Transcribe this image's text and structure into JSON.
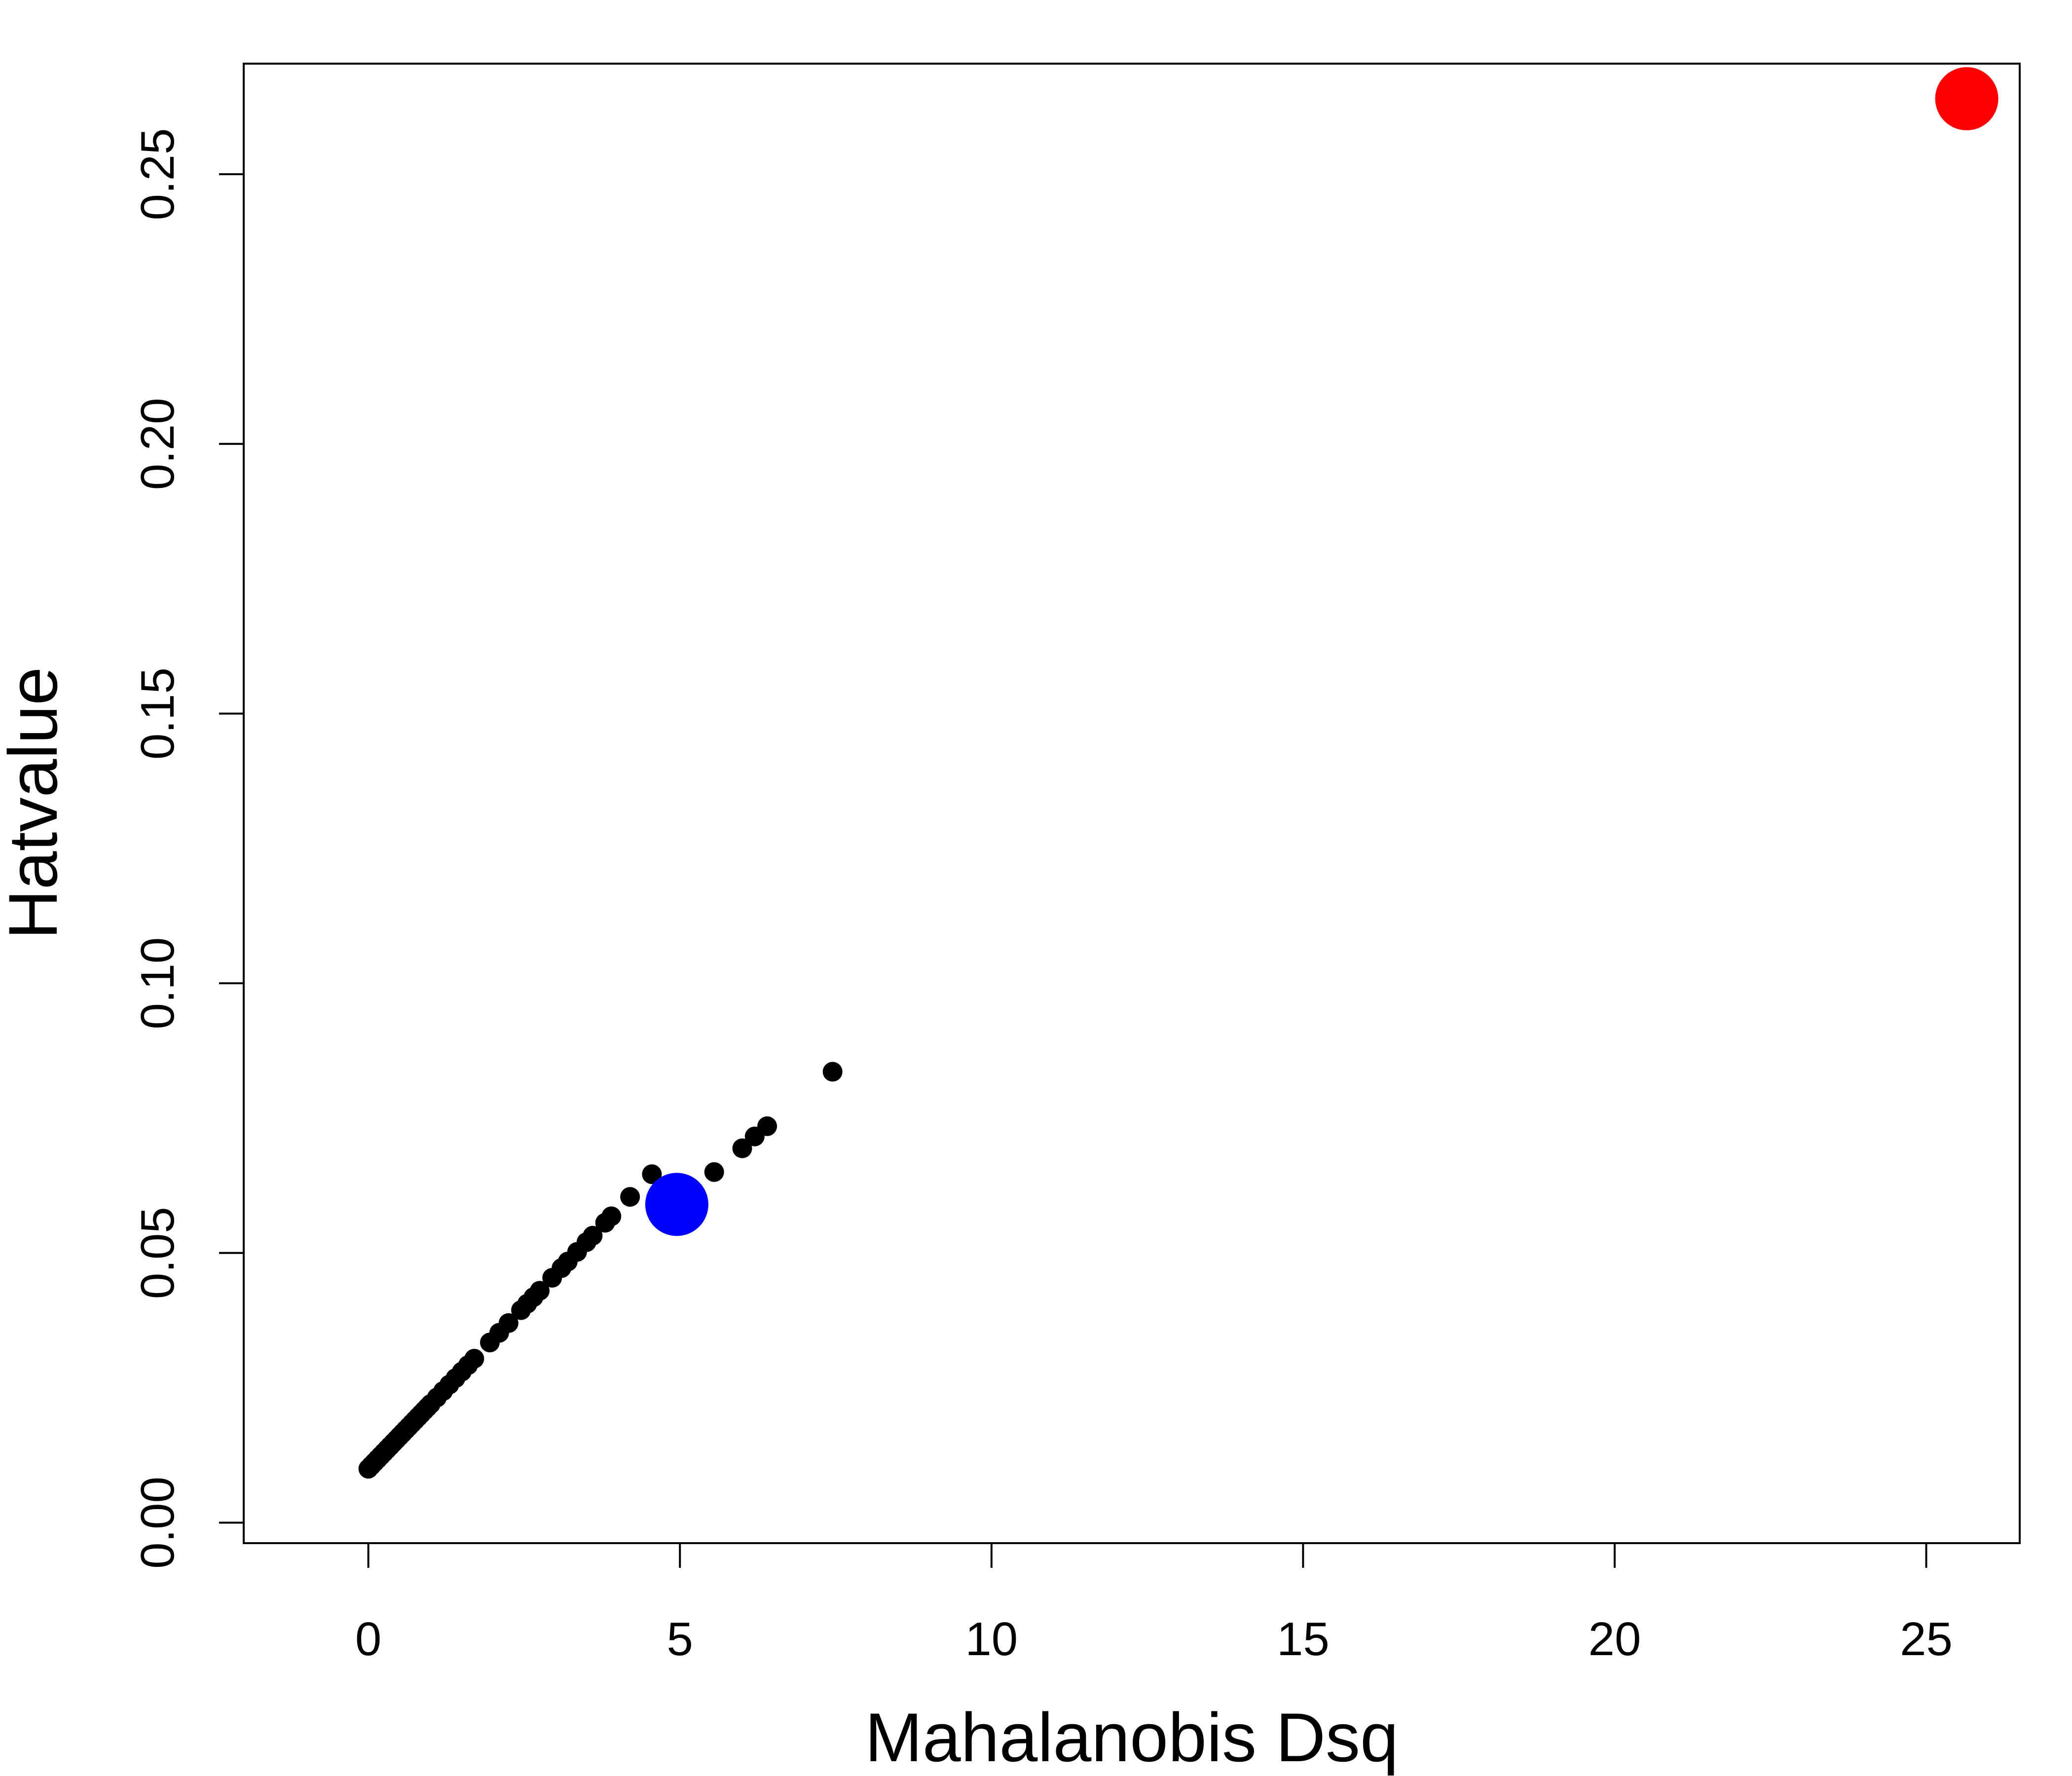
{
  "chart_data": {
    "type": "scatter",
    "title": "",
    "xlabel": "Mahalanobis Dsq",
    "ylabel": "Hatvalue",
    "xlim": [
      -2,
      26.5
    ],
    "ylim": [
      -0.0038,
      0.2705
    ],
    "xticks": [
      0,
      5,
      10,
      15,
      20,
      25
    ],
    "yticks": [
      0.0,
      0.05,
      0.1,
      0.15,
      0.2,
      0.25
    ],
    "xtick_labels": [
      "0",
      "5",
      "10",
      "15",
      "20",
      "25"
    ],
    "ytick_labels": [
      "0.00",
      "0.05",
      "0.10",
      "0.15",
      "0.20",
      "0.25"
    ],
    "grid": false,
    "legend": false,
    "series": [
      {
        "color": "#000000",
        "marker": "small-filled-circle",
        "x": [
          0.0,
          0.05,
          0.1,
          0.15,
          0.2,
          0.25,
          0.3,
          0.35,
          0.4,
          0.45,
          0.5,
          0.55,
          0.6,
          0.65,
          0.7,
          0.75,
          0.8,
          0.85,
          0.9,
          0.95,
          1.0,
          1.1,
          1.2,
          1.3,
          1.4,
          1.5,
          1.6,
          1.7,
          1.95,
          2.1,
          2.25,
          2.45,
          2.55,
          2.65,
          2.75,
          2.95,
          3.1,
          3.2,
          3.35,
          3.5,
          3.6,
          3.8,
          3.9,
          4.2,
          4.55,
          5.55,
          6.0,
          6.2,
          6.4,
          7.45
        ],
        "y": [
          0.01,
          0.0106,
          0.0112,
          0.0118,
          0.0124,
          0.013,
          0.0136,
          0.0142,
          0.0148,
          0.0154,
          0.016,
          0.0166,
          0.0172,
          0.0178,
          0.0184,
          0.019,
          0.0196,
          0.0202,
          0.0208,
          0.0214,
          0.022,
          0.0232,
          0.0244,
          0.0256,
          0.0268,
          0.028,
          0.0292,
          0.0304,
          0.0334,
          0.0352,
          0.037,
          0.0394,
          0.0406,
          0.0418,
          0.043,
          0.0454,
          0.0472,
          0.0484,
          0.0502,
          0.052,
          0.0532,
          0.0556,
          0.0568,
          0.0604,
          0.0646,
          0.065,
          0.0694,
          0.0716,
          0.0735,
          0.0836
        ]
      },
      {
        "color": "#0000FF",
        "marker": "large-filled-circle",
        "x": [
          4.95
        ],
        "y": [
          0.059
        ]
      },
      {
        "color": "#FF0000",
        "marker": "large-filled-circle",
        "x": [
          25.65
        ],
        "y": [
          0.264
        ]
      }
    ]
  }
}
